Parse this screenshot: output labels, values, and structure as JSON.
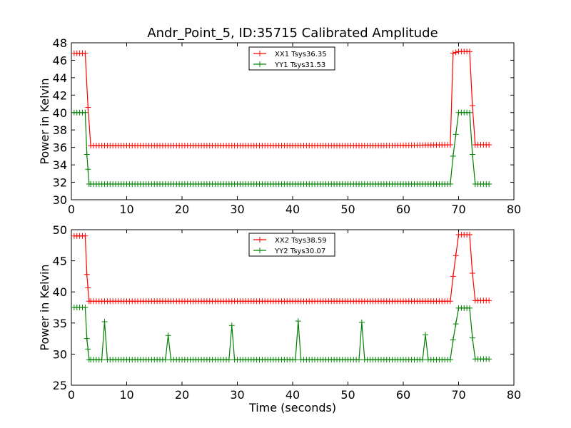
{
  "chart_data": [
    {
      "type": "line",
      "title": "Andr_Point_5, ID:35715 Calibrated Amplitude",
      "xlabel": "",
      "ylabel": "Power in Kelvin",
      "xlim": [
        0,
        80
      ],
      "ylim": [
        30,
        48
      ],
      "xticks": [
        0,
        10,
        20,
        30,
        40,
        50,
        60,
        70,
        80
      ],
      "yticks": [
        30,
        32,
        34,
        36,
        38,
        40,
        42,
        44,
        46,
        48
      ],
      "grid": false,
      "legend_position": "top-center",
      "series": [
        {
          "name": "XX1 Tsys36.35",
          "color": "#ff0000",
          "marker": "plus",
          "x": [
            0.5,
            1.0,
            1.5,
            2.0,
            2.5,
            3.0,
            3.5,
            15.0,
            35.0,
            55.0,
            68.5,
            69.0,
            70.0,
            71.0,
            72.0,
            72.5,
            73.0,
            75.5
          ],
          "y": [
            46.8,
            46.8,
            46.8,
            46.8,
            46.8,
            40.6,
            36.2,
            36.2,
            36.2,
            36.2,
            36.3,
            46.8,
            47.0,
            47.0,
            47.0,
            40.8,
            36.3,
            36.3
          ]
        },
        {
          "name": "YY1 Tsys31.53",
          "color": "#008000",
          "marker": "plus",
          "x": [
            0.5,
            1.0,
            1.5,
            2.0,
            2.5,
            2.8,
            3.2,
            15.0,
            35.0,
            55.0,
            68.5,
            69.0,
            70.0,
            71.0,
            72.0,
            72.5,
            73.0,
            75.5
          ],
          "y": [
            40.0,
            40.0,
            40.0,
            40.0,
            40.0,
            35.2,
            31.8,
            31.8,
            31.8,
            31.8,
            31.8,
            35.0,
            40.0,
            40.0,
            40.0,
            35.2,
            31.8,
            31.8
          ]
        }
      ]
    },
    {
      "type": "line",
      "title": "",
      "xlabel": "Time (seconds)",
      "ylabel": "Power in Kelvin",
      "xlim": [
        0,
        80
      ],
      "ylim": [
        25,
        50
      ],
      "xticks": [
        0,
        10,
        20,
        30,
        40,
        50,
        60,
        70,
        80
      ],
      "yticks": [
        25,
        30,
        35,
        40,
        45,
        50
      ],
      "grid": false,
      "legend_position": "top-center",
      "series": [
        {
          "name": "XX2 Tsys38.59",
          "color": "#ff0000",
          "marker": "plus",
          "x": [
            0.5,
            1.0,
            1.5,
            2.0,
            2.5,
            2.8,
            3.2,
            15.0,
            35.0,
            55.0,
            68.5,
            69.0,
            70.0,
            71.0,
            72.0,
            72.5,
            73.0,
            75.5
          ],
          "y": [
            49.0,
            49.0,
            49.0,
            49.0,
            49.0,
            42.8,
            38.5,
            38.5,
            38.5,
            38.5,
            38.5,
            42.5,
            49.2,
            49.2,
            49.2,
            43.0,
            38.6,
            38.6
          ]
        },
        {
          "name": "YY2 Tsys30.07",
          "color": "#008000",
          "marker": "plus",
          "x": [
            0.5,
            1.0,
            1.5,
            2.0,
            2.5,
            2.8,
            3.2,
            5.5,
            6.0,
            6.5,
            17.0,
            17.5,
            18.0,
            28.5,
            29.0,
            29.5,
            40.5,
            41.0,
            41.5,
            52.0,
            52.5,
            53.0,
            63.5,
            64.0,
            64.5,
            68.5,
            69.0,
            70.0,
            71.0,
            72.0,
            72.5,
            73.0,
            75.5
          ],
          "y": [
            37.5,
            37.5,
            37.5,
            37.5,
            37.5,
            32.5,
            29.1,
            29.1,
            35.2,
            29.1,
            29.1,
            33.0,
            29.1,
            29.1,
            34.6,
            29.1,
            29.1,
            35.3,
            29.1,
            29.1,
            35.1,
            29.1,
            29.1,
            33.1,
            29.1,
            29.1,
            32.3,
            37.4,
            37.4,
            37.4,
            32.6,
            29.2,
            29.2
          ]
        }
      ]
    }
  ]
}
